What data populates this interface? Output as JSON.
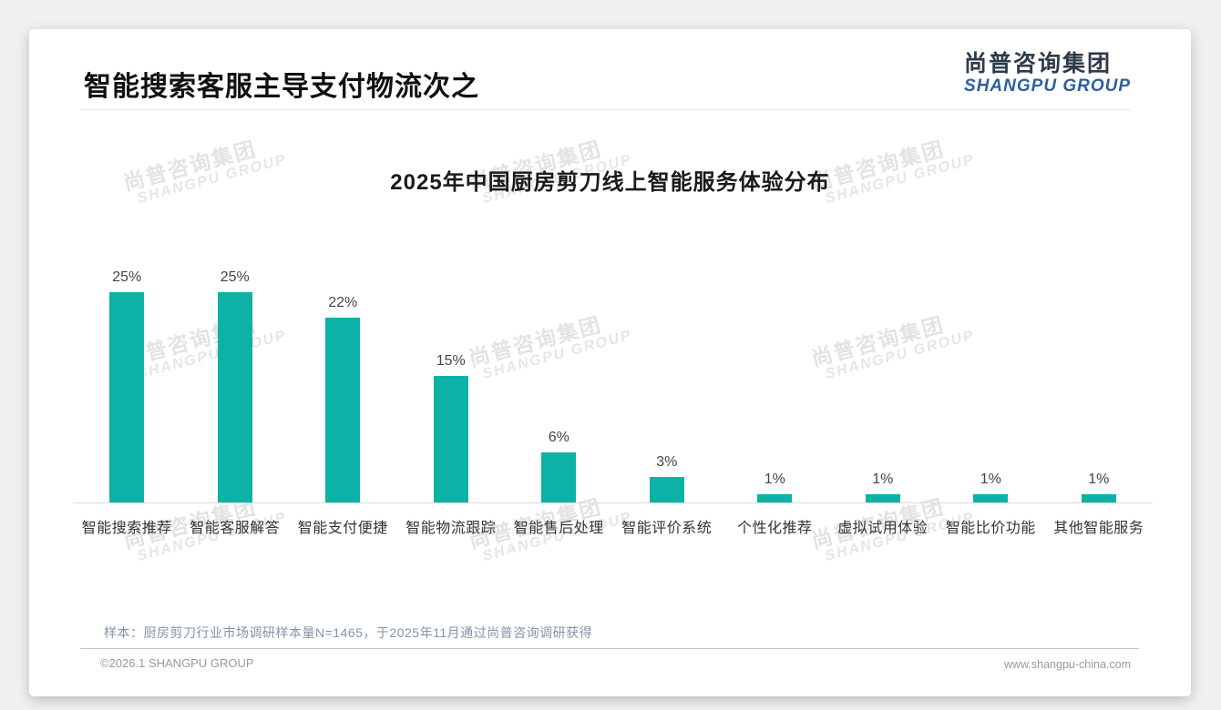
{
  "page": {
    "title": "智能搜索客服主导支付物流次之",
    "logo": {
      "cn": "尚普咨询集团",
      "en": "SHANGPU GROUP"
    },
    "watermark": {
      "cn": "尚普咨询集团",
      "en": "SHANGPU GROUP"
    },
    "note": "样本：厨房剪刀行业市场调研样本量N=1465，于2025年11月通过尚普咨询调研获得",
    "footer": {
      "left": "©2026.1 SHANGPU GROUP",
      "right": "www.shangpu-china.com"
    },
    "colors": {
      "bar": "#0cb2a6",
      "logo_blue": "#2e5f9e",
      "watermark": "#e3e3e3",
      "note_text": "#8095aa"
    }
  },
  "chart_data": {
    "type": "bar",
    "title": "2025年中国厨房剪刀线上智能服务体验分布",
    "categories": [
      "智能搜索推荐",
      "智能客服解答",
      "智能支付便捷",
      "智能物流跟踪",
      "智能售后处理",
      "智能评价系统",
      "个性化推荐",
      "虚拟试用体验",
      "智能比价功能",
      "其他智能服务"
    ],
    "values": [
      25,
      25,
      22,
      15,
      6,
      3,
      1,
      1,
      1,
      1
    ],
    "unit": "%",
    "value_labels": [
      "25%",
      "25%",
      "22%",
      "15%",
      "6%",
      "3%",
      "1%",
      "1%",
      "1%",
      "1%"
    ],
    "xlabel": "",
    "ylabel": "",
    "ylim": [
      0,
      27
    ],
    "grid": false,
    "legend": "none",
    "bar_color": "#0cb2a6"
  }
}
